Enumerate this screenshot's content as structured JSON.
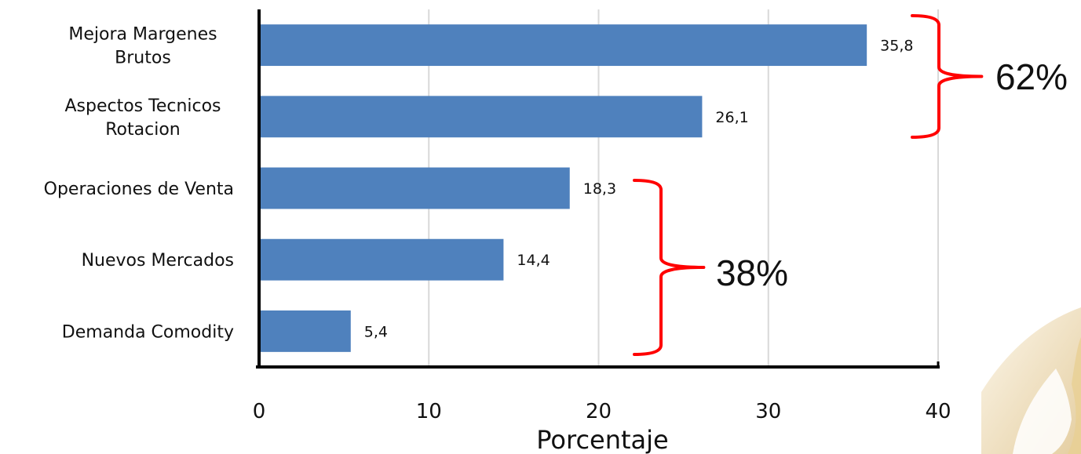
{
  "chart_data": {
    "type": "bar",
    "orientation": "horizontal",
    "categories": [
      [
        "Mejora Margenes",
        "Brutos"
      ],
      [
        "Aspectos Tecnicos",
        "Rotacion"
      ],
      [
        "Operaciones de Venta"
      ],
      [
        "Nuevos Mercados"
      ],
      [
        "Demanda Comodity"
      ]
    ],
    "values": [
      35.8,
      26.1,
      18.3,
      14.4,
      5.4
    ],
    "value_labels": [
      "35,8",
      "26,1",
      "18,3",
      "14,4",
      "5,4"
    ],
    "xlabel": "Porcentaje",
    "xlim": [
      0,
      40
    ],
    "xticks": [
      0,
      10,
      20,
      30,
      40
    ],
    "grid": "vertical",
    "legend": "none",
    "bar_color": "#4f81bd",
    "annotations": [
      {
        "label": "62%",
        "covers": [
          0,
          1
        ],
        "color": "#ff0000"
      },
      {
        "label": "38%",
        "covers": [
          2,
          3,
          4
        ],
        "color": "#ff0000"
      }
    ]
  },
  "colors": {
    "bar": "#4f81bd",
    "grid": "#d9d9d9",
    "axis": "#000000",
    "bracket": "#ff0000",
    "decoration": "#d9b978"
  }
}
